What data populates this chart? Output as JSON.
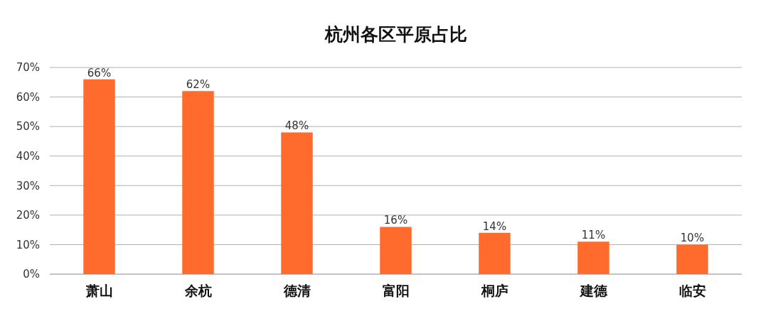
{
  "chart_data": {
    "type": "bar",
    "title": "杭州各区平原占比",
    "categories": [
      "萧山",
      "余杭",
      "德清",
      "富阳",
      "桐庐",
      "建德",
      "临安"
    ],
    "values": [
      66,
      62,
      48,
      16,
      14,
      11,
      10
    ],
    "value_labels": [
      "66%",
      "62%",
      "48%",
      "16%",
      "14%",
      "11%",
      "10%"
    ],
    "color": "#fe6b2c",
    "ylim": [
      0,
      70
    ],
    "yticks": [
      {
        "value": 0,
        "label": "0%"
      },
      {
        "value": 10,
        "label": "10%"
      },
      {
        "value": 20,
        "label": "20%"
      },
      {
        "value": 30,
        "label": "30%"
      },
      {
        "value": 40,
        "label": "40%"
      },
      {
        "value": 50,
        "label": "50%"
      },
      {
        "value": 60,
        "label": "60%"
      },
      {
        "value": 70,
        "label": "70%"
      }
    ],
    "grid": "y"
  }
}
